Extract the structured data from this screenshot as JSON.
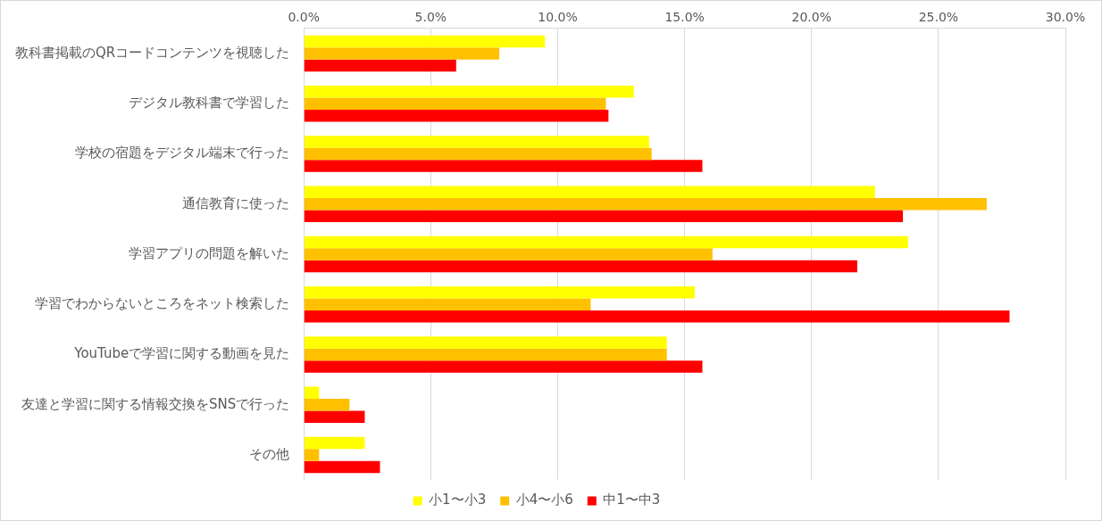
{
  "chart_data": {
    "type": "bar",
    "orientation": "horizontal",
    "categories": [
      "教科書掲載のQRコードコンテンツを視聴した",
      "デジタル教科書で学習した",
      "学校の宿題をデジタル端末で行った",
      "通信教育に使った",
      "学習アプリの問題を解いた",
      "学習でわからないところをネット検索した",
      "YouTubeで学習に関する動画を見た",
      "友達と学習に関する情報交換をSNSで行った",
      "その他"
    ],
    "series": [
      {
        "name": "小1〜小3",
        "color": "#ffff00",
        "values": [
          9.5,
          13.0,
          13.6,
          22.5,
          23.8,
          15.4,
          14.3,
          0.6,
          2.4
        ]
      },
      {
        "name": "小4〜小6",
        "color": "#ffc000",
        "values": [
          7.7,
          11.9,
          13.7,
          26.9,
          16.1,
          11.3,
          14.3,
          1.8,
          0.6
        ]
      },
      {
        "name": "中1〜中3",
        "color": "#ff0000",
        "values": [
          6.0,
          12.0,
          15.7,
          23.6,
          21.8,
          27.8,
          15.7,
          2.4,
          3.0
        ]
      }
    ],
    "xlim": [
      0,
      30
    ],
    "xticks": [
      {
        "value": 0,
        "label": "0.0%"
      },
      {
        "value": 5,
        "label": "5.0%"
      },
      {
        "value": 10,
        "label": "10.0%"
      },
      {
        "value": 15,
        "label": "15.0%"
      },
      {
        "value": 20,
        "label": "20.0%"
      },
      {
        "value": 25,
        "label": "25.0%"
      },
      {
        "value": 30,
        "label": "30.0%"
      }
    ],
    "grid": true,
    "legend": "bottom"
  }
}
